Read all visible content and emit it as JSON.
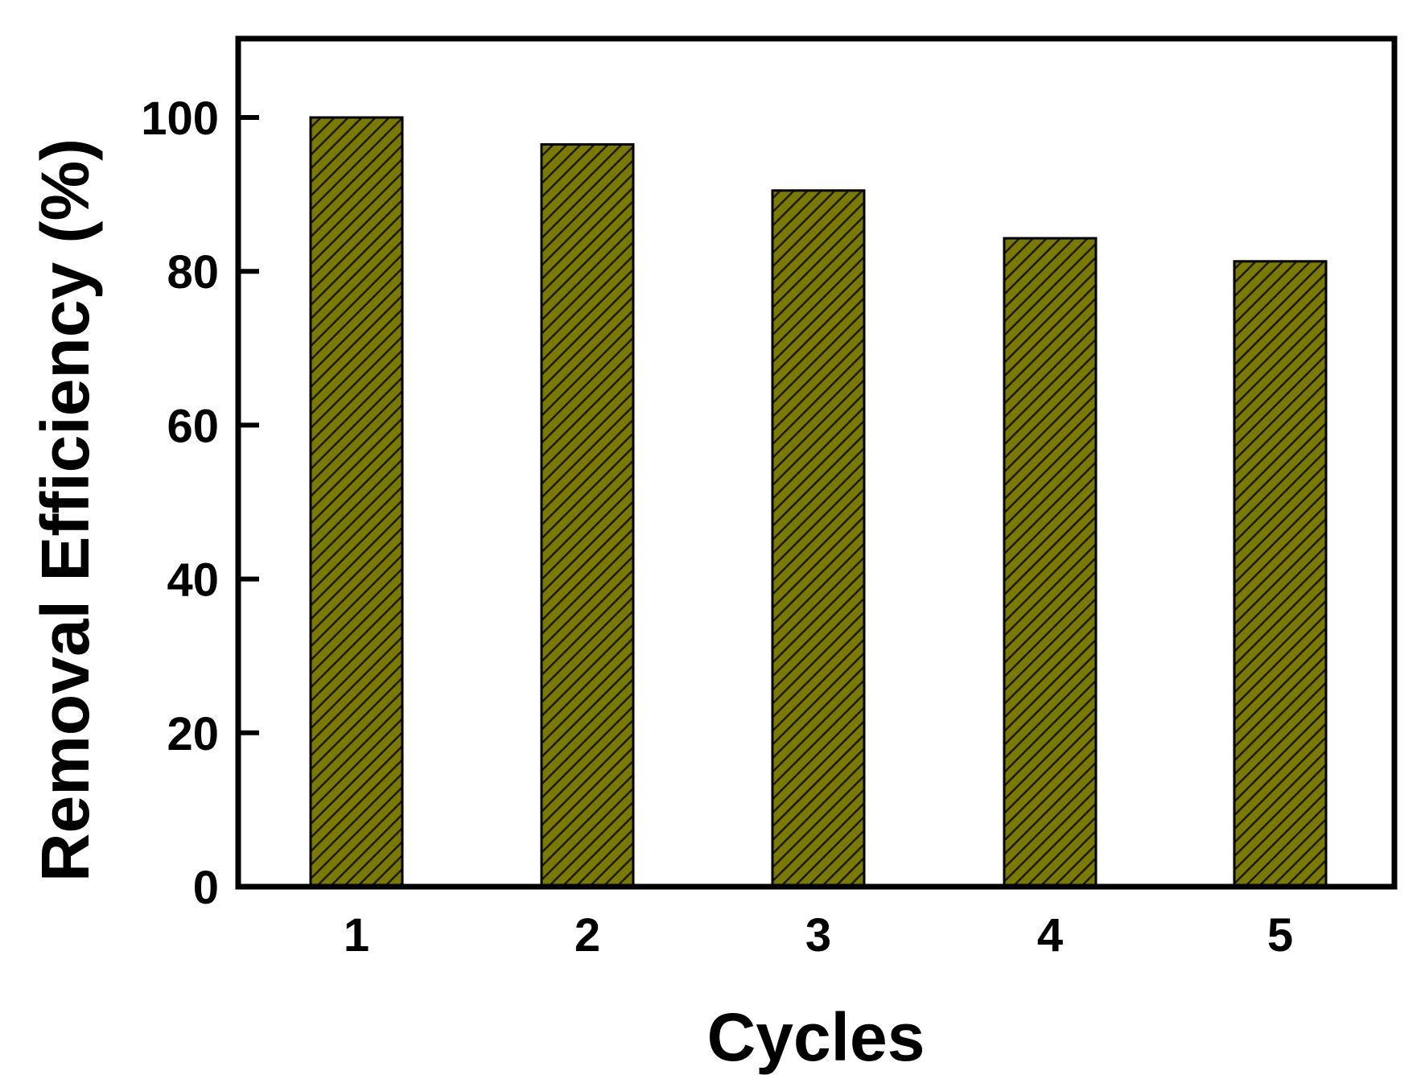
{
  "chart_data": {
    "type": "bar",
    "title": "",
    "xlabel": "Cycles",
    "ylabel": "Removal Efficiency (%)",
    "categories": [
      "1",
      "2",
      "3",
      "4",
      "5"
    ],
    "values": [
      100,
      96.5,
      90.5,
      84.3,
      81.3
    ],
    "ylim": [
      0,
      110
    ],
    "yticks": [
      0,
      20,
      40,
      60,
      80,
      100
    ],
    "grid": false,
    "legend": "none",
    "colors": {
      "bar_fill": "#7a7a00",
      "bar_hatch": "#1a1a00",
      "bar_edge": "#000000",
      "axis": "#000000"
    }
  }
}
